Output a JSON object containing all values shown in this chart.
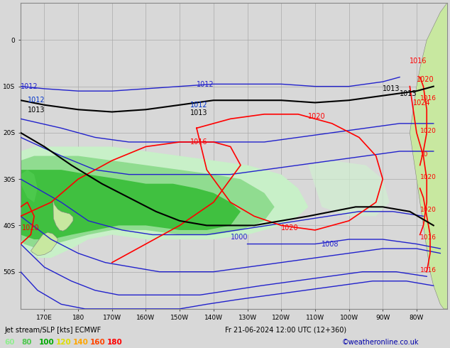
{
  "title": "Jet stream/SLP [kts] ECMWF",
  "date_label": "Fr 21-06-2024 12:00 UTC (12+360)",
  "credit": "©weatheronline.co.uk",
  "legend_values": [
    "60",
    "80",
    "100",
    "120",
    "140",
    "160",
    "180"
  ],
  "legend_colors": [
    "#90EE90",
    "#50C850",
    "#00AA00",
    "#DDDD00",
    "#FFA500",
    "#FF4500",
    "#FF0000"
  ],
  "background_color": "#D8D8D8",
  "land_color": "#C8E8A0",
  "ocean_color": "#D8D8D8",
  "grid_color": "#AAAAAA",
  "contour_slp_color": "#FF0000",
  "contour_black_color": "#000000",
  "contour_blue_color": "#2222CC",
  "jet_green_light": "#C0F0C0",
  "jet_green_mid": "#80D880",
  "jet_green_dark": "#30BB30",
  "figsize": [
    6.34,
    4.9
  ],
  "dpi": 100,
  "xlim": [
    163,
    289
  ],
  "ylim": [
    -58,
    8
  ],
  "xticks": [
    170,
    180,
    190,
    200,
    210,
    220,
    230,
    240,
    250,
    260,
    270,
    280
  ],
  "xlabels": [
    "170E",
    "180",
    "170W",
    "160W",
    "150W",
    "140W",
    "130W",
    "120W",
    "110W",
    "100W",
    "90W",
    "80W"
  ],
  "yticks": [
    -50,
    -40,
    -30,
    -20,
    -10,
    0
  ],
  "ylabels": [
    "50S",
    "40S",
    "30S",
    "20S",
    "10S",
    "0"
  ]
}
